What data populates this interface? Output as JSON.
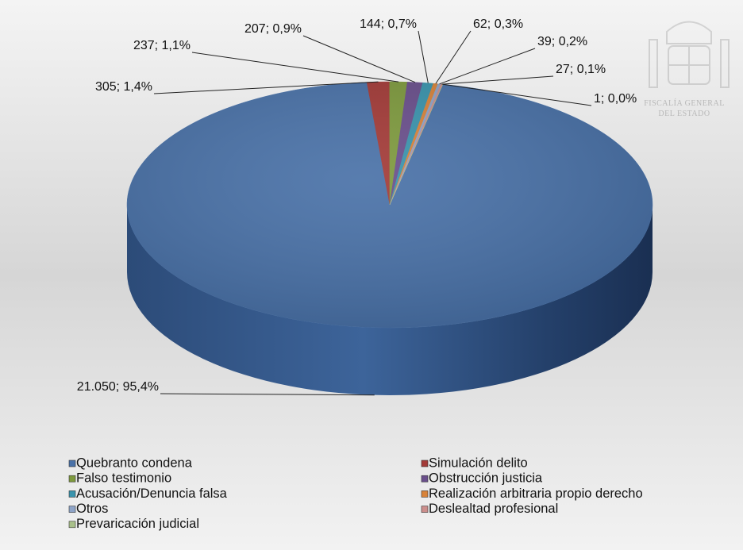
{
  "chart_data": {
    "type": "pie",
    "categories": [
      "Quebranto condena",
      "Simulación delito",
      "Falso testimonio",
      "Obstrucción justicia",
      "Acusación/Denuncia falsa",
      "Realización arbitraria propio derecho",
      "Otros",
      "Deslealtad profesional",
      "Prevaricación judicial"
    ],
    "values": [
      21050,
      305,
      237,
      207,
      144,
      62,
      39,
      27,
      1
    ],
    "value_labels": [
      "21.050; 95,4%",
      "305; 1,4%",
      "237; 1,1%",
      "207; 0,9%",
      "144; 0,7%",
      "62; 0,3%",
      "39; 0,2%",
      "27; 0,1%",
      "1; 0,0%"
    ],
    "colors": [
      "#4a72a8",
      "#a33b38",
      "#7e9a3e",
      "#6a4f8c",
      "#3a94ad",
      "#d8833a",
      "#8ea4c8",
      "#cc8e8c",
      "#a9c08a"
    ]
  },
  "logo": {
    "line1": "FISCALÍA GENERAL",
    "line2": "DEL ESTADO"
  }
}
